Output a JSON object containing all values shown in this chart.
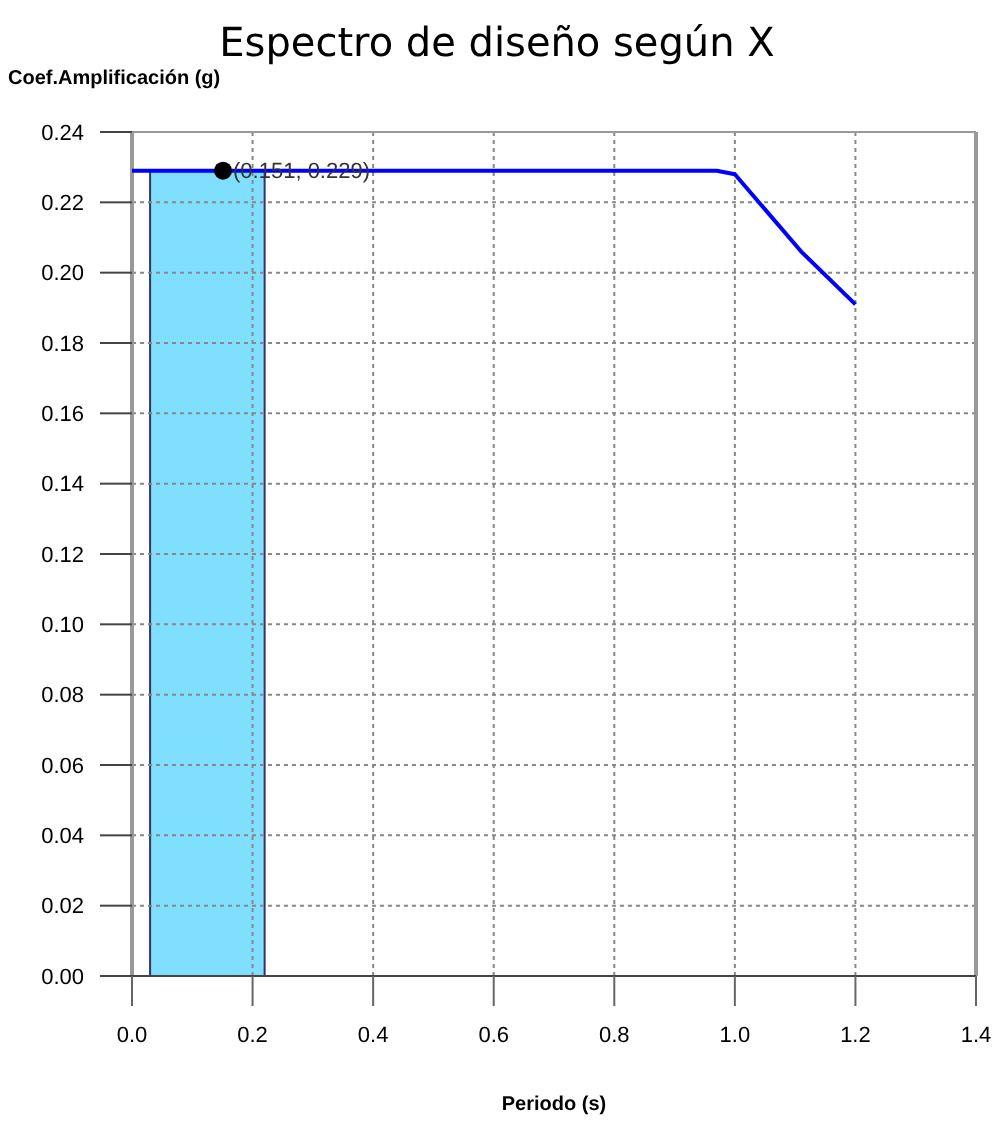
{
  "chart_data": {
    "type": "line",
    "title": "Espectro de diseño según X",
    "xlabel": "Periodo (s)",
    "ylabel": "Coef.Amplificación (g)",
    "series": [
      {
        "color": "#0000ff",
        "x": [
          0,
          0.97,
          1.0,
          1.11,
          1.2
        ],
        "values": [
          0.229,
          0.229,
          0.228,
          0.206,
          0.191
        ]
      },
      {
        "type": "scatter",
        "color": "#000000",
        "x": [
          0.151
        ],
        "values": [
          0.229
        ],
        "marker": "circle"
      }
    ],
    "bands": [
      {
        "axis": "x",
        "from": 0.03,
        "to": 0.22,
        "color": "#80dfff"
      }
    ],
    "annotations": [
      {
        "text": "(0.151, 0.229)",
        "x": 0.151,
        "y": 0.229
      }
    ],
    "xlim": [
      0,
      1.4
    ],
    "xticks": [
      {
        "value": 0,
        "label": "0.0"
      },
      0.2,
      0.4,
      0.6,
      0.8,
      {
        "value": 1,
        "label": "1.0"
      },
      1.2,
      1.4
    ],
    "ylim": [
      0,
      0.24
    ],
    "yticks": [
      {
        "value": 0,
        "label": "0.00"
      },
      0.02,
      0.04,
      0.06,
      0.08,
      {
        "value": 0.1,
        "label": "0.10"
      },
      0.12,
      0.14,
      0.16,
      0.18,
      {
        "value": 0.2,
        "label": "0.20"
      },
      0.22,
      0.24
    ],
    "grid": true,
    "line_style": "solid"
  }
}
